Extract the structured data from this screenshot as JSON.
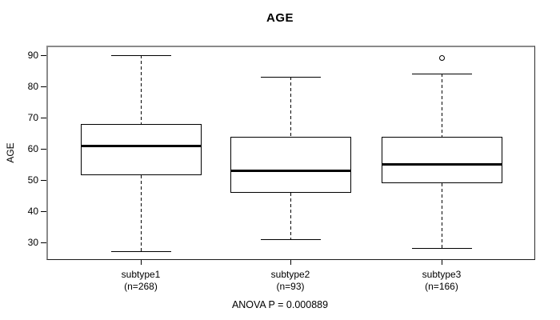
{
  "header": {
    "title": "AGE"
  },
  "chart_data": {
    "type": "boxplot",
    "title": "AGE",
    "xlabel": "",
    "ylabel": "AGE",
    "ylim": [
      24.4,
      93.1
    ],
    "yticks": [
      90,
      80,
      70,
      60,
      50,
      40,
      30
    ],
    "grid": false,
    "legend": "none",
    "annotation": "ANOVA P = 0.000889",
    "categories": [
      {
        "label": "subtype1",
        "sublabel": "(n=268)"
      },
      {
        "label": "subtype2",
        "sublabel": "(n=93)"
      },
      {
        "label": "subtype3",
        "sublabel": "(n=166)"
      }
    ],
    "series": [
      {
        "name": "subtype1",
        "n": 268,
        "lower_whisker": 27,
        "q1": 51.5,
        "median": 61,
        "q3": 68,
        "upper_whisker": 90,
        "outliers": []
      },
      {
        "name": "subtype2",
        "n": 93,
        "lower_whisker": 31,
        "q1": 46,
        "median": 53,
        "q3": 64,
        "upper_whisker": 83,
        "outliers": []
      },
      {
        "name": "subtype3",
        "n": 166,
        "lower_whisker": 28,
        "q1": 49,
        "median": 55,
        "q3": 64,
        "upper_whisker": 84,
        "outliers": [
          89
        ]
      }
    ]
  },
  "colors": {
    "line": "#000000",
    "frame": "#8a8a8a",
    "background": "#ffffff"
  }
}
